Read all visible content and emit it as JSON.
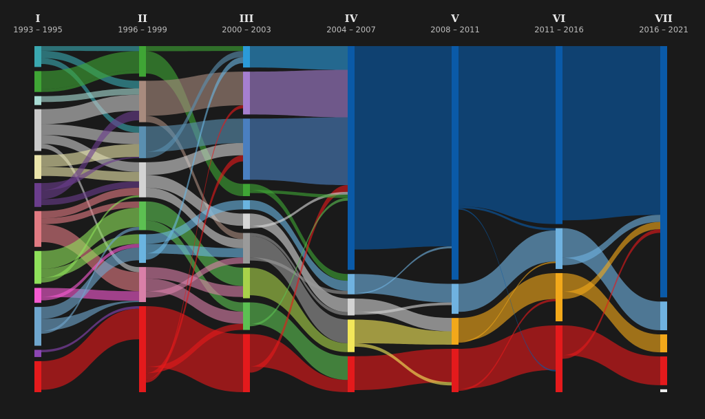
{
  "chart_data": {
    "type": "sankey",
    "columns": [
      {
        "roman": "I",
        "period": "1993 – 1995"
      },
      {
        "roman": "II",
        "period": "1996 – 1999"
      },
      {
        "roman": "III",
        "period": "2000 – 2003"
      },
      {
        "roman": "IV",
        "period": "2004 – 2007"
      },
      {
        "roman": "V",
        "period": "2008 – 2011"
      },
      {
        "roman": "VI",
        "period": "2011 – 2016"
      },
      {
        "roman": "VII",
        "period": "2016 – 2021"
      }
    ],
    "nodes": [
      [
        {
          "color": "#3aa8b0",
          "value": 3.5
        },
        {
          "color": "#3fa535",
          "value": 3.5
        },
        {
          "color": "#a8dcd4",
          "value": 1.5
        },
        {
          "color": "#c9c9c9",
          "value": 7.0
        },
        {
          "color": "#e9e3a9",
          "value": 4.0
        },
        {
          "color": "#6a3d8c",
          "value": 4.0
        },
        {
          "color": "#e07a82",
          "value": 6.0
        },
        {
          "color": "#8ee05a",
          "value": 5.5
        },
        {
          "color": "#f45ad0",
          "value": 2.5
        },
        {
          "color": "#6fa6cd",
          "value": 6.5
        },
        {
          "color": "#8b46b4",
          "value": 1.2
        },
        {
          "color": "#e41a1c",
          "value": 5.2
        }
      ],
      [
        {
          "color": "#3fa535",
          "value": 4.8
        },
        {
          "color": "#a88b7e",
          "value": 6.5
        },
        {
          "color": "#5a8fb0",
          "value": 5.0
        },
        {
          "color": "#d2d2d2",
          "value": 5.5
        },
        {
          "color": "#5cc052",
          "value": 4.5
        },
        {
          "color": "#6ab4e0",
          "value": 4.5
        },
        {
          "color": "#d97fa8",
          "value": 5.5
        },
        {
          "color": "#e41a1c",
          "value": 13.5
        }
      ],
      [
        {
          "color": "#2b9ad8",
          "value": 3.5
        },
        {
          "color": "#a57fd0",
          "value": 7.0
        },
        {
          "color": "#4a7fc0",
          "value": 10.0
        },
        {
          "color": "#3fa535",
          "value": 2.0
        },
        {
          "color": "#6ab4e0",
          "value": 1.5
        },
        {
          "color": "#d6d6d6",
          "value": 2.5
        },
        {
          "color": "#9a9a9a",
          "value": 5.0
        },
        {
          "color": "#a8d24a",
          "value": 5.0
        },
        {
          "color": "#5cc052",
          "value": 4.5
        },
        {
          "color": "#e41a1c",
          "value": 9.5
        }
      ],
      [
        {
          "color": "#0a5aa8",
          "value": 33.0
        },
        {
          "color": "#6fb2e0",
          "value": 3.0
        },
        {
          "color": "#d2d2d2",
          "value": 2.5
        },
        {
          "color": "#f2e65a",
          "value": 4.8
        },
        {
          "color": "#e41a1c",
          "value": 5.3
        }
      ],
      [
        {
          "color": "#0a5aa8",
          "value": 35.0
        },
        {
          "color": "#6fb2e0",
          "value": 4.5
        },
        {
          "color": "#f2a81a",
          "value": 4.0
        },
        {
          "color": "#e41a1c",
          "value": 6.5
        }
      ],
      [
        {
          "color": "#0a5aa8",
          "value": 24.0
        },
        {
          "color": "#6fb2e0",
          "value": 5.5
        },
        {
          "color": "#f2a81a",
          "value": 6.5
        },
        {
          "color": "#e41a1c",
          "value": 9.0
        }
      ],
      [
        {
          "color": "#0a5aa8",
          "value": 35.0
        },
        {
          "color": "#6fb2e0",
          "value": 4.0
        },
        {
          "color": "#f2a81a",
          "value": 2.5
        },
        {
          "color": "#e41a1c",
          "value": 4.0
        },
        {
          "color": "#ececec",
          "value": 0.4
        }
      ]
    ],
    "links": [
      [
        [
          0,
          0,
          0,
          0.8
        ],
        [
          0,
          1,
          2,
          1.2
        ],
        [
          0,
          2,
          5,
          1.0
        ],
        [
          1,
          0,
          0,
          3.0
        ],
        [
          1,
          0,
          3,
          0.5
        ],
        [
          2,
          1,
          1,
          1.0
        ],
        [
          3,
          1,
          1,
          2.5
        ],
        [
          3,
          2,
          2,
          1.8
        ],
        [
          3,
          3,
          3,
          1.5
        ],
        [
          3,
          6,
          6,
          0.8
        ],
        [
          4,
          2,
          2,
          2.0
        ],
        [
          4,
          3,
          3,
          1.5
        ],
        [
          5,
          2,
          2,
          1.2
        ],
        [
          5,
          1,
          1,
          1.5
        ],
        [
          5,
          3,
          3,
          1.0
        ],
        [
          6,
          3,
          3,
          1.2
        ],
        [
          6,
          4,
          4,
          1.0
        ],
        [
          6,
          6,
          6,
          3.0
        ],
        [
          7,
          4,
          4,
          3.0
        ],
        [
          7,
          5,
          5,
          1.5
        ],
        [
          7,
          3,
          3,
          0.8
        ],
        [
          8,
          6,
          6,
          1.5
        ],
        [
          8,
          5,
          5,
          0.6
        ],
        [
          9,
          5,
          5,
          2.0
        ],
        [
          9,
          2,
          2,
          1.5
        ],
        [
          9,
          6,
          6,
          2.0
        ],
        [
          9,
          4,
          4,
          0.5
        ],
        [
          10,
          6,
          6,
          0.6
        ],
        [
          10,
          7,
          7,
          0.4
        ],
        [
          11,
          7,
          7,
          4.8
        ],
        [
          11,
          6,
          6,
          0.4
        ]
      ],
      [
        [
          0,
          0,
          0,
          0.8
        ],
        [
          0,
          3,
          3,
          3.5
        ],
        [
          1,
          1,
          1,
          5.5
        ],
        [
          1,
          6,
          6,
          1.0
        ],
        [
          2,
          2,
          2,
          4.0
        ],
        [
          2,
          0,
          0,
          1.0
        ],
        [
          3,
          2,
          2,
          2.0
        ],
        [
          3,
          5,
          5,
          2.0
        ],
        [
          3,
          6,
          6,
          1.5
        ],
        [
          4,
          7,
          7,
          3.0
        ],
        [
          4,
          8,
          8,
          1.5
        ],
        [
          5,
          4,
          4,
          1.5
        ],
        [
          5,
          6,
          6,
          1.5
        ],
        [
          5,
          0,
          0,
          1.0
        ],
        [
          6,
          7,
          7,
          1.8
        ],
        [
          6,
          8,
          8,
          2.0
        ],
        [
          6,
          6,
          6,
          1.0
        ],
        [
          7,
          9,
          9,
          9.5
        ],
        [
          7,
          8,
          8,
          1.0
        ],
        [
          7,
          2,
          2,
          1.0
        ],
        [
          7,
          1,
          1,
          0.5
        ]
      ],
      [
        [
          0,
          0,
          0,
          3.5
        ],
        [
          1,
          0,
          0,
          7.0
        ],
        [
          2,
          0,
          0,
          10.0
        ],
        [
          3,
          1,
          1,
          1.0
        ],
        [
          4,
          1,
          1,
          1.5
        ],
        [
          5,
          2,
          2,
          2.0
        ],
        [
          6,
          2,
          2,
          0.5
        ],
        [
          6,
          3,
          3,
          3.5
        ],
        [
          7,
          3,
          3,
          4.5
        ],
        [
          8,
          3,
          3,
          0.5
        ],
        [
          8,
          4,
          4,
          3.5
        ],
        [
          9,
          4,
          4,
          5.3
        ],
        [
          9,
          0,
          0,
          1.0
        ],
        [
          5,
          0,
          0,
          0.4
        ],
        [
          6,
          1,
          1,
          0.5
        ],
        [
          3,
          0,
          0,
          0.5
        ],
        [
          8,
          0,
          0,
          0.4
        ]
      ],
      [
        [
          0,
          0,
          0,
          30.0
        ],
        [
          1,
          1,
          1,
          2.8
        ],
        [
          2,
          2,
          2,
          2.0
        ],
        [
          3,
          2,
          2,
          3.5
        ],
        [
          4,
          3,
          3,
          5.0
        ],
        [
          1,
          0,
          0,
          0.3
        ],
        [
          3,
          3,
          3,
          0.5
        ],
        [
          2,
          1,
          1,
          0.4
        ]
      ],
      [
        [
          0,
          0,
          0,
          24.0
        ],
        [
          0,
          1,
          1,
          0.3
        ],
        [
          1,
          1,
          1,
          4.2
        ],
        [
          2,
          2,
          2,
          3.5
        ],
        [
          3,
          3,
          3,
          6.0
        ],
        [
          0,
          3,
          3,
          0.2
        ],
        [
          2,
          1,
          1,
          0.2
        ],
        [
          3,
          2,
          2,
          0.3
        ]
      ],
      [
        [
          0,
          0,
          0,
          23.5
        ],
        [
          1,
          1,
          1,
          4.0
        ],
        [
          2,
          2,
          2,
          2.5
        ],
        [
          3,
          3,
          3,
          4.0
        ],
        [
          1,
          0,
          0,
          1.0
        ],
        [
          2,
          0,
          0,
          1.0
        ],
        [
          3,
          0,
          0,
          0.5
        ],
        [
          2,
          1,
          1,
          0.3
        ]
      ]
    ]
  }
}
